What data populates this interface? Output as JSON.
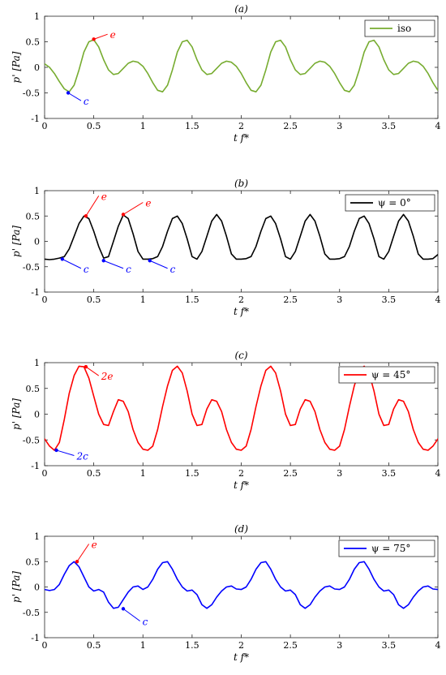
{
  "chart_data": [
    {
      "type": "line",
      "title": "(a)",
      "xlabel": "t f*",
      "ylabel": "p' [Pa]",
      "xlim": [
        0,
        4
      ],
      "ylim": [
        -1,
        1
      ],
      "xticks": [
        "0",
        "0.5",
        "1",
        "1.5",
        "2",
        "2.5",
        "3",
        "3.5",
        "4"
      ],
      "yticks": [
        "1",
        "0.5",
        "0",
        "-0.5",
        "-1"
      ],
      "grid": false,
      "legend_position": "top-right",
      "series": [
        {
          "name": "iso",
          "color": "#77ac30",
          "x": [
            0,
            0.05,
            0.1,
            0.15,
            0.2,
            0.25,
            0.3,
            0.35,
            0.4,
            0.45,
            0.5,
            0.55,
            0.6,
            0.65,
            0.7,
            0.75,
            0.8,
            0.85,
            0.9,
            0.95,
            1.0,
            1.05,
            1.1,
            1.15,
            1.2,
            1.25,
            1.3,
            1.35,
            1.4,
            1.45,
            1.5,
            1.55,
            1.6,
            1.65,
            1.7,
            1.75,
            1.8,
            1.85,
            1.9,
            1.95,
            2.0,
            2.05,
            2.1,
            2.15,
            2.2,
            2.25,
            2.3,
            2.35,
            2.4,
            2.45,
            2.5,
            2.55,
            2.6,
            2.65,
            2.7,
            2.75,
            2.8,
            2.85,
            2.9,
            2.95,
            3.0,
            3.05,
            3.1,
            3.15,
            3.2,
            3.25,
            3.3,
            3.35,
            3.4,
            3.45,
            3.5,
            3.55,
            3.6,
            3.65,
            3.7,
            3.75,
            3.8,
            3.85,
            3.9,
            3.95,
            4.0
          ],
          "y": [
            0.07,
            0.0,
            -0.12,
            -0.28,
            -0.42,
            -0.48,
            -0.35,
            -0.05,
            0.3,
            0.5,
            0.54,
            0.4,
            0.15,
            -0.05,
            -0.14,
            -0.12,
            -0.02,
            0.08,
            0.12,
            0.1,
            0.02,
            -0.12,
            -0.3,
            -0.45,
            -0.48,
            -0.35,
            -0.05,
            0.3,
            0.5,
            0.53,
            0.4,
            0.15,
            -0.05,
            -0.14,
            -0.12,
            -0.02,
            0.08,
            0.12,
            0.1,
            0.02,
            -0.12,
            -0.3,
            -0.45,
            -0.48,
            -0.35,
            -0.05,
            0.3,
            0.5,
            0.53,
            0.4,
            0.15,
            -0.05,
            -0.14,
            -0.12,
            -0.02,
            0.08,
            0.12,
            0.1,
            0.02,
            -0.12,
            -0.3,
            -0.45,
            -0.48,
            -0.35,
            -0.05,
            0.3,
            0.5,
            0.53,
            0.4,
            0.15,
            -0.05,
            -0.14,
            -0.12,
            -0.02,
            0.08,
            0.12,
            0.1,
            0.02,
            -0.12,
            -0.3,
            -0.45
          ]
        }
      ],
      "annotations": [
        {
          "label": "e",
          "color": "#ff0000",
          "point": [
            0.5,
            0.55
          ],
          "text_at": [
            0.69,
            0.6
          ]
        },
        {
          "label": "c",
          "color": "#0000ff",
          "point": [
            0.24,
            -0.5
          ],
          "text_at": [
            0.42,
            -0.7
          ]
        }
      ]
    },
    {
      "type": "line",
      "title": "(b)",
      "xlabel": "t f*",
      "ylabel": "p' [Pa]",
      "xlim": [
        0,
        4
      ],
      "ylim": [
        -1,
        1
      ],
      "xticks": [
        "0",
        "0.5",
        "1",
        "1.5",
        "2",
        "2.5",
        "3",
        "3.5",
        "4"
      ],
      "yticks": [
        "1",
        "0.5",
        "0",
        "-0.5",
        "-1"
      ],
      "grid": false,
      "legend_position": "top-right",
      "series": [
        {
          "name": "ψ = 0°",
          "color": "#000000",
          "x": [
            0,
            0.05,
            0.1,
            0.15,
            0.2,
            0.25,
            0.3,
            0.35,
            0.4,
            0.45,
            0.5,
            0.55,
            0.6,
            0.65,
            0.7,
            0.75,
            0.8,
            0.85,
            0.9,
            0.95,
            1.0,
            1.05,
            1.1,
            1.15,
            1.2,
            1.25,
            1.3,
            1.35,
            1.4,
            1.45,
            1.5,
            1.55,
            1.6,
            1.65,
            1.7,
            1.75,
            1.8,
            1.85,
            1.9,
            1.95,
            2.0,
            2.05,
            2.1,
            2.15,
            2.2,
            2.25,
            2.3,
            2.35,
            2.4,
            2.45,
            2.5,
            2.55,
            2.6,
            2.65,
            2.7,
            2.75,
            2.8,
            2.85,
            2.9,
            2.95,
            3.0,
            3.05,
            3.1,
            3.15,
            3.2,
            3.25,
            3.3,
            3.35,
            3.4,
            3.45,
            3.5,
            3.55,
            3.6,
            3.65,
            3.7,
            3.75,
            3.8,
            3.85,
            3.9,
            3.95,
            4.0
          ],
          "y": [
            -0.35,
            -0.36,
            -0.35,
            -0.33,
            -0.3,
            -0.15,
            0.1,
            0.35,
            0.5,
            0.45,
            0.2,
            -0.1,
            -0.33,
            -0.3,
            0.0,
            0.3,
            0.52,
            0.45,
            0.15,
            -0.2,
            -0.35,
            -0.35,
            -0.34,
            -0.3,
            -0.1,
            0.2,
            0.45,
            0.5,
            0.35,
            0.05,
            -0.3,
            -0.35,
            -0.2,
            0.1,
            0.4,
            0.53,
            0.4,
            0.1,
            -0.25,
            -0.35,
            -0.35,
            -0.34,
            -0.3,
            -0.1,
            0.2,
            0.45,
            0.5,
            0.35,
            0.05,
            -0.3,
            -0.35,
            -0.2,
            0.1,
            0.4,
            0.53,
            0.4,
            0.1,
            -0.25,
            -0.35,
            -0.35,
            -0.34,
            -0.3,
            -0.1,
            0.2,
            0.45,
            0.5,
            0.35,
            0.05,
            -0.3,
            -0.35,
            -0.2,
            0.1,
            0.4,
            0.53,
            0.4,
            0.1,
            -0.25,
            -0.35,
            -0.35,
            -0.34,
            -0.26
          ]
        }
      ],
      "annotations": [
        {
          "label": "e",
          "color": "#ff0000",
          "point": [
            0.42,
            0.5
          ],
          "text_at": [
            0.6,
            0.85
          ]
        },
        {
          "label": "e",
          "color": "#ff0000",
          "point": [
            0.8,
            0.53
          ],
          "text_at": [
            1.05,
            0.72
          ]
        },
        {
          "label": "c",
          "color": "#0000ff",
          "point": [
            0.18,
            -0.35
          ],
          "text_at": [
            0.42,
            -0.58
          ]
        },
        {
          "label": "c",
          "color": "#0000ff",
          "point": [
            0.6,
            -0.38
          ],
          "text_at": [
            0.85,
            -0.58
          ]
        },
        {
          "label": "c",
          "color": "#0000ff",
          "point": [
            1.07,
            -0.38
          ],
          "text_at": [
            1.3,
            -0.58
          ]
        }
      ]
    },
    {
      "type": "line",
      "title": "(c)",
      "xlabel": "t f*",
      "ylabel": "p' [Pa]",
      "xlim": [
        0,
        4
      ],
      "ylim": [
        -1,
        1
      ],
      "xticks": [
        "0",
        "0.5",
        "1",
        "1.5",
        "2",
        "2.5",
        "3",
        "3.5",
        "4"
      ],
      "yticks": [
        "1",
        "0.5",
        "0",
        "-0.5",
        "-1"
      ],
      "grid": false,
      "legend_position": "top-right",
      "series": [
        {
          "name": "ψ = 45°",
          "color": "#ff0000",
          "x": [
            0,
            0.05,
            0.1,
            0.15,
            0.2,
            0.25,
            0.3,
            0.35,
            0.4,
            0.45,
            0.5,
            0.55,
            0.6,
            0.65,
            0.7,
            0.75,
            0.8,
            0.85,
            0.9,
            0.95,
            1.0,
            1.05,
            1.1,
            1.15,
            1.2,
            1.25,
            1.3,
            1.35,
            1.4,
            1.45,
            1.5,
            1.55,
            1.6,
            1.65,
            1.7,
            1.75,
            1.8,
            1.85,
            1.9,
            1.95,
            2.0,
            2.05,
            2.1,
            2.15,
            2.2,
            2.25,
            2.3,
            2.35,
            2.4,
            2.45,
            2.5,
            2.55,
            2.6,
            2.65,
            2.7,
            2.75,
            2.8,
            2.85,
            2.9,
            2.95,
            3.0,
            3.05,
            3.1,
            3.15,
            3.2,
            3.25,
            3.3,
            3.35,
            3.4,
            3.45,
            3.5,
            3.55,
            3.6,
            3.65,
            3.7,
            3.75,
            3.8,
            3.85,
            3.9,
            3.95,
            4.0
          ],
          "y": [
            -0.48,
            -0.62,
            -0.7,
            -0.55,
            -0.1,
            0.4,
            0.75,
            0.93,
            0.92,
            0.7,
            0.35,
            0.0,
            -0.2,
            -0.22,
            0.05,
            0.28,
            0.25,
            0.05,
            -0.3,
            -0.55,
            -0.68,
            -0.7,
            -0.62,
            -0.3,
            0.15,
            0.55,
            0.85,
            0.93,
            0.8,
            0.45,
            0.0,
            -0.22,
            -0.2,
            0.1,
            0.28,
            0.25,
            0.05,
            -0.3,
            -0.55,
            -0.68,
            -0.7,
            -0.62,
            -0.3,
            0.15,
            0.55,
            0.85,
            0.93,
            0.8,
            0.45,
            0.0,
            -0.22,
            -0.2,
            0.1,
            0.28,
            0.25,
            0.05,
            -0.3,
            -0.55,
            -0.68,
            -0.7,
            -0.62,
            -0.3,
            0.15,
            0.55,
            0.85,
            0.93,
            0.8,
            0.45,
            0.0,
            -0.22,
            -0.2,
            0.1,
            0.28,
            0.25,
            0.05,
            -0.3,
            -0.55,
            -0.68,
            -0.7,
            -0.62,
            -0.48
          ]
        }
      ],
      "annotations": [
        {
          "label": "2e",
          "color": "#ff0000",
          "point": [
            0.42,
            0.92
          ],
          "text_at": [
            0.6,
            0.7
          ]
        },
        {
          "label": "2c",
          "color": "#0000ff",
          "point": [
            0.12,
            -0.7
          ],
          "text_at": [
            0.35,
            -0.85
          ]
        }
      ]
    },
    {
      "type": "line",
      "title": "(d)",
      "xlabel": "t f*",
      "ylabel": "p' [Pa]",
      "xlim": [
        0,
        4
      ],
      "ylim": [
        -1,
        1
      ],
      "xticks": [
        "0",
        "0.5",
        "1",
        "1.5",
        "2",
        "2.5",
        "3",
        "3.5",
        "4"
      ],
      "yticks": [
        "1",
        "0.5",
        "0",
        "-0.5",
        "-1"
      ],
      "grid": false,
      "legend_position": "top-right",
      "series": [
        {
          "name": "ψ = 75°",
          "color": "#0000ff",
          "x": [
            0,
            0.05,
            0.1,
            0.15,
            0.2,
            0.25,
            0.3,
            0.35,
            0.4,
            0.45,
            0.5,
            0.55,
            0.6,
            0.65,
            0.7,
            0.75,
            0.8,
            0.85,
            0.9,
            0.95,
            1.0,
            1.05,
            1.1,
            1.15,
            1.2,
            1.25,
            1.3,
            1.35,
            1.4,
            1.45,
            1.5,
            1.55,
            1.6,
            1.65,
            1.7,
            1.75,
            1.8,
            1.85,
            1.9,
            1.95,
            2.0,
            2.05,
            2.1,
            2.15,
            2.2,
            2.25,
            2.3,
            2.35,
            2.4,
            2.45,
            2.5,
            2.55,
            2.6,
            2.65,
            2.7,
            2.75,
            2.8,
            2.85,
            2.9,
            2.95,
            3.0,
            3.05,
            3.1,
            3.15,
            3.2,
            3.25,
            3.3,
            3.35,
            3.4,
            3.45,
            3.5,
            3.55,
            3.6,
            3.65,
            3.7,
            3.75,
            3.8,
            3.85,
            3.9,
            3.95,
            4.0
          ],
          "y": [
            -0.05,
            -0.07,
            -0.05,
            0.05,
            0.25,
            0.42,
            0.5,
            0.4,
            0.2,
            0.0,
            -0.08,
            -0.05,
            -0.1,
            -0.3,
            -0.42,
            -0.4,
            -0.25,
            -0.1,
            0.0,
            0.02,
            -0.05,
            0.0,
            0.15,
            0.35,
            0.48,
            0.5,
            0.35,
            0.15,
            0.0,
            -0.08,
            -0.06,
            -0.15,
            -0.35,
            -0.42,
            -0.35,
            -0.2,
            -0.08,
            0.0,
            0.02,
            -0.04,
            -0.05,
            0.0,
            0.15,
            0.35,
            0.48,
            0.5,
            0.35,
            0.15,
            0.0,
            -0.08,
            -0.06,
            -0.15,
            -0.35,
            -0.42,
            -0.35,
            -0.2,
            -0.08,
            0.0,
            0.02,
            -0.04,
            -0.05,
            0.0,
            0.15,
            0.35,
            0.48,
            0.5,
            0.35,
            0.15,
            0.0,
            -0.08,
            -0.06,
            -0.15,
            -0.35,
            -0.42,
            -0.35,
            -0.2,
            -0.08,
            0.0,
            0.02,
            -0.04,
            -0.05
          ]
        }
      ],
      "annotations": [
        {
          "label": "e",
          "color": "#ff0000",
          "point": [
            0.33,
            0.5
          ],
          "text_at": [
            0.5,
            0.8
          ]
        },
        {
          "label": "c",
          "color": "#0000ff",
          "point": [
            0.8,
            -0.43
          ],
          "text_at": [
            1.02,
            -0.72
          ]
        }
      ]
    }
  ]
}
